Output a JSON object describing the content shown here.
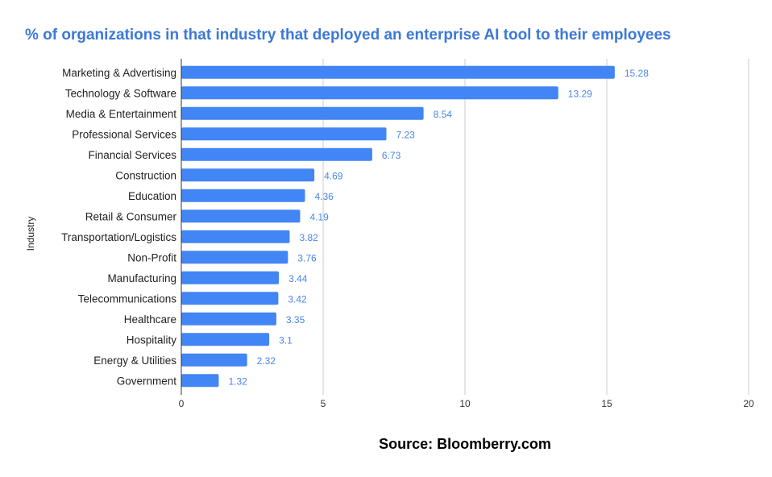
{
  "chart_data": {
    "type": "bar",
    "orientation": "horizontal",
    "title": "% of organizations in that industry that deployed an enterprise AI tool to their employees",
    "xlabel": "",
    "ylabel": "Industry",
    "xlim": [
      0,
      20
    ],
    "xticks": [
      0,
      5,
      10,
      15,
      20
    ],
    "xtick_labels": [
      "0",
      "5",
      "10",
      "15",
      "20"
    ],
    "grid": "vertical",
    "legend": "none",
    "categories": [
      "Marketing & Advertising",
      "Technology & Software",
      "Media & Entertainment",
      "Professional Services",
      "Financial Services",
      "Construction",
      "Education",
      "Retail & Consumer",
      "Transportation/Logistics",
      "Non-Profit",
      "Manufacturing",
      "Telecommunications",
      "Healthcare",
      "Hospitality",
      "Energy & Utilities",
      "Government"
    ],
    "values": [
      15.28,
      13.29,
      8.54,
      7.23,
      6.73,
      4.69,
      4.36,
      4.19,
      3.82,
      3.76,
      3.44,
      3.42,
      3.35,
      3.1,
      2.32,
      1.32
    ],
    "value_labels": [
      "15.28",
      "13.29",
      "8.54",
      "7.23",
      "6.73",
      "4.69",
      "4.36",
      "4.19",
      "3.82",
      "3.76",
      "3.44",
      "3.42",
      "3.35",
      "3.1",
      "2.32",
      "1.32"
    ],
    "annotation": "Source: Bloomberry.com",
    "colors": {
      "bar": "#4285f4",
      "title": "#3c78d8",
      "value_label": "#4a86e8",
      "gridline": "#cccccc",
      "axis": "#333333"
    }
  }
}
